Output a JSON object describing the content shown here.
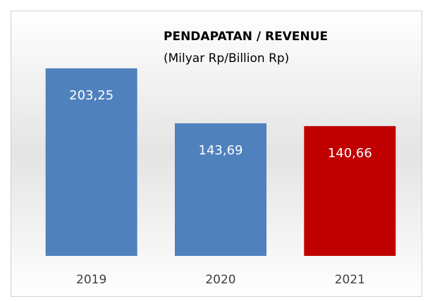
{
  "chart_data": {
    "type": "bar",
    "title": "PENDAPATAN / REVENUE",
    "subtitle": "(Milyar Rp/Billion Rp)",
    "categories": [
      "2019",
      "2020",
      "2021"
    ],
    "values": [
      203.25,
      143.69,
      140.66
    ],
    "value_labels": [
      "203,25",
      "143,69",
      "140,66"
    ],
    "colors": [
      "#4f81bd",
      "#4f81bd",
      "#c00000"
    ]
  }
}
